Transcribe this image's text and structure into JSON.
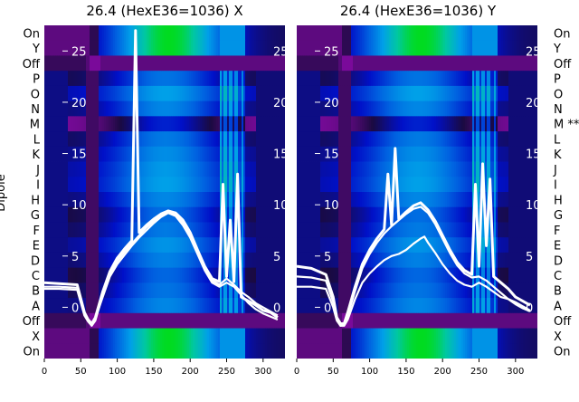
{
  "figure": {
    "ylabel": "Dipole",
    "row_labels_left": [
      "On",
      "Y",
      "Off",
      "P",
      "O",
      "N",
      "M",
      "L",
      "K",
      "J",
      "I",
      "H",
      "G",
      "F",
      "E",
      "D",
      "C",
      "B",
      "A",
      "Off",
      "X",
      "On"
    ],
    "row_labels_right": [
      "On",
      "Y",
      "Off",
      "P",
      "O",
      "N",
      "M **",
      "L",
      "K",
      "J",
      "I",
      "H",
      "G",
      "F",
      "E",
      "D",
      "C",
      "B",
      "A",
      "Off",
      "X",
      "On"
    ]
  },
  "chart_data": [
    {
      "type": "heatmap",
      "title": "26.4 (HexE36=1036) X",
      "xlabel": "",
      "ylabel": "Dipole",
      "xlim": [
        0,
        330
      ],
      "x_ticks": [
        0,
        50,
        100,
        150,
        200,
        250,
        300
      ],
      "overlay_ylim": [
        -5,
        27.5
      ],
      "overlay_ticks": [
        0,
        5,
        10,
        15,
        20,
        25
      ],
      "rows": [
        "On",
        "Y",
        "Off",
        "P",
        "O",
        "N",
        "M",
        "L",
        "K",
        "J",
        "I",
        "H",
        "G",
        "F",
        "E",
        "D",
        "C",
        "B",
        "A",
        "Off",
        "X",
        "On"
      ],
      "colormap": [
        "#7a0a9a",
        "#1a0a40",
        "#0010c8",
        "#0060e0",
        "#00a0e8",
        "#00c8a0",
        "#00e000"
      ],
      "overlay_series": [
        {
          "x": [
            0,
            20,
            45,
            55,
            60,
            65,
            70,
            80,
            90,
            100,
            110,
            120,
            125,
            130,
            140,
            150,
            160,
            170,
            180,
            190,
            200,
            210,
            220,
            230,
            240,
            245,
            250,
            255,
            260,
            265,
            270,
            280,
            290,
            300,
            310,
            320
          ],
          "y": [
            2.4,
            2.3,
            2.2,
            -0.5,
            -1.2,
            -1.6,
            -1.0,
            1.5,
            3.5,
            4.8,
            5.7,
            6.5,
            27,
            7.3,
            8.0,
            8.6,
            9.1,
            9.4,
            9.2,
            8.5,
            7.3,
            5.6,
            4.0,
            2.8,
            2.5,
            12.0,
            3.0,
            8.5,
            2.5,
            13.0,
            1.0,
            0.6,
            0.2,
            -0.3,
            -0.5,
            -1.0
          ]
        },
        {
          "x": [
            0,
            20,
            45,
            55,
            60,
            65,
            70,
            80,
            90,
            100,
            110,
            120,
            130,
            140,
            150,
            160,
            170,
            180,
            190,
            200,
            210,
            220,
            230,
            240,
            250,
            260,
            270,
            280,
            290,
            300,
            310,
            320
          ],
          "y": [
            1.8,
            1.8,
            1.7,
            -0.8,
            -1.4,
            -1.8,
            -1.3,
            1.2,
            3.2,
            4.5,
            5.4,
            6.2,
            7.0,
            7.8,
            8.4,
            9.0,
            9.3,
            9.0,
            8.2,
            7.0,
            5.4,
            3.8,
            2.6,
            2.2,
            2.8,
            2.2,
            1.5,
            1.0,
            0.4,
            0.0,
            -0.4,
            -0.8
          ]
        },
        {
          "x": [
            0,
            20,
            45,
            55,
            60,
            65,
            70,
            80,
            90,
            100,
            110,
            120,
            130,
            140,
            150,
            160,
            170,
            180,
            190,
            200,
            210,
            220,
            230,
            240,
            250,
            260,
            270,
            280,
            290,
            300,
            310,
            320
          ],
          "y": [
            2.0,
            2.0,
            1.9,
            -0.6,
            -1.3,
            -1.7,
            -1.1,
            1.0,
            3.0,
            4.2,
            5.1,
            6.0,
            6.8,
            7.5,
            8.2,
            8.8,
            9.2,
            8.9,
            8.0,
            6.8,
            5.2,
            3.6,
            2.4,
            2.0,
            2.4,
            2.0,
            1.2,
            0.4,
            -0.2,
            -0.6,
            -0.9,
            -1.2
          ]
        }
      ]
    },
    {
      "type": "heatmap",
      "title": "26.4 (HexE36=1036) Y",
      "xlabel": "",
      "ylabel": "",
      "xlim": [
        0,
        330
      ],
      "x_ticks": [
        0,
        50,
        100,
        150,
        200,
        250,
        300
      ],
      "overlay_ylim": [
        -5,
        27.5
      ],
      "overlay_ticks": [
        0,
        5,
        10,
        15,
        20,
        25
      ],
      "rows": [
        "On",
        "Y",
        "Off",
        "P",
        "O",
        "N",
        "M",
        "L",
        "K",
        "J",
        "I",
        "H",
        "G",
        "F",
        "E",
        "D",
        "C",
        "B",
        "A",
        "Off",
        "X",
        "On"
      ],
      "colormap": [
        "#7a0a9a",
        "#1a0a40",
        "#0010c8",
        "#0060e0",
        "#00a0e8",
        "#00c8a0",
        "#00e000"
      ],
      "overlay_series": [
        {
          "x": [
            0,
            20,
            40,
            50,
            55,
            60,
            65,
            70,
            80,
            90,
            100,
            110,
            120,
            125,
            130,
            135,
            140,
            150,
            160,
            170,
            180,
            190,
            200,
            210,
            220,
            230,
            240,
            245,
            250,
            255,
            260,
            265,
            270,
            280,
            290,
            300,
            310,
            320
          ],
          "y": [
            4.0,
            3.8,
            3.2,
            1.0,
            -1.0,
            -1.6,
            -1.6,
            -0.5,
            2.0,
            4.2,
            5.6,
            6.7,
            7.6,
            13.0,
            8.0,
            15.5,
            8.6,
            9.3,
            9.9,
            10.2,
            9.5,
            8.4,
            7.0,
            5.6,
            4.4,
            3.6,
            3.2,
            12.0,
            4.0,
            14.0,
            6.0,
            12.5,
            3.0,
            2.4,
            1.8,
            1.0,
            0.6,
            0.2
          ]
        },
        {
          "x": [
            0,
            20,
            40,
            50,
            55,
            60,
            65,
            70,
            80,
            90,
            100,
            110,
            120,
            130,
            140,
            150,
            160,
            170,
            180,
            190,
            200,
            210,
            220,
            230,
            240,
            250,
            260,
            270,
            280,
            290,
            300,
            310,
            320
          ],
          "y": [
            3.0,
            2.9,
            2.6,
            0.5,
            -1.2,
            -1.8,
            -1.7,
            -0.8,
            1.6,
            3.8,
            5.2,
            6.3,
            7.2,
            7.9,
            8.5,
            9.1,
            9.6,
            9.8,
            9.2,
            8.1,
            6.7,
            5.3,
            4.1,
            3.3,
            2.9,
            3.0,
            2.6,
            2.0,
            1.4,
            0.8,
            0.3,
            -0.1,
            -0.4
          ]
        },
        {
          "x": [
            0,
            20,
            40,
            50,
            55,
            60,
            65,
            70,
            80,
            90,
            100,
            110,
            120,
            130,
            140,
            150,
            160,
            170,
            175,
            180,
            190,
            200,
            210,
            220,
            230,
            240,
            250,
            260,
            270,
            280,
            290,
            300,
            310,
            320
          ],
          "y": [
            2.0,
            2.0,
            1.8,
            0.0,
            -1.3,
            -1.8,
            -1.8,
            -1.2,
            0.8,
            2.4,
            3.3,
            4.0,
            4.6,
            5.0,
            5.2,
            5.6,
            6.2,
            6.7,
            6.9,
            6.3,
            5.3,
            4.2,
            3.3,
            2.6,
            2.2,
            2.0,
            2.4,
            2.0,
            1.5,
            1.0,
            0.8,
            0.5,
            0.1,
            -0.3
          ]
        }
      ]
    }
  ]
}
